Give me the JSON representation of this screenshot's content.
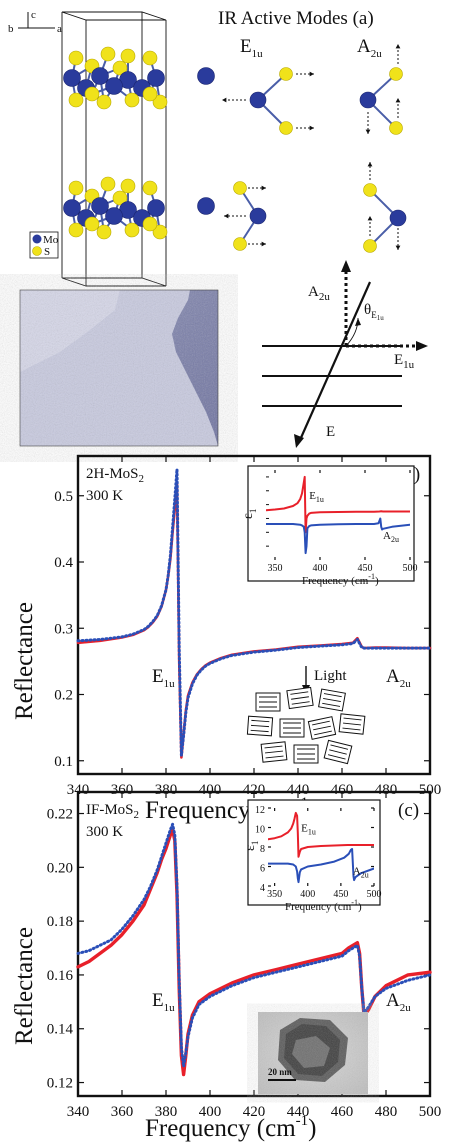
{
  "panel_a": {
    "title": "IR Active Modes (a)",
    "mode_left": "E",
    "mode_left_sub": "1u",
    "mode_right": "A",
    "mode_right_sub": "2u",
    "axis_b": "b",
    "axis_c": "c",
    "axis_a": "a",
    "legend_mo": "Mo",
    "legend_s": "S",
    "geom_a2u": "A",
    "geom_a2u_sub": "2u",
    "geom_e1u": "E",
    "geom_e1u_sub": "1u",
    "geom_e": "E",
    "geom_theta": "θ",
    "geom_theta_sub": "E",
    "geom_theta_subsub": "1u",
    "atom_colors": {
      "mo": "#2a3b9c",
      "s": "#f0e21a"
    }
  },
  "chart_data": [
    {
      "type": "line",
      "panel_label": "(b)",
      "annotation_sample": "2H-MoS",
      "annotation_sample_sub": "2",
      "annotation_temp": "300 K",
      "ylabel": "Reflectance",
      "xlabel": "Frequency (cm",
      "xlabel_sup": "-1",
      "xlabel_end": ")",
      "xlim": [
        340,
        500
      ],
      "ylim": [
        0.08,
        0.56
      ],
      "xticks": [
        "340",
        "360",
        "380",
        "400",
        "420",
        "440",
        "460",
        "480",
        "500"
      ],
      "yticks": [
        "0.1",
        "0.2",
        "0.3",
        "0.4",
        "0.5"
      ],
      "peak_labels": {
        "e": "E",
        "e_sub": "1u",
        "a": "A",
        "a_sub": "2u"
      },
      "light_label": "Light",
      "series": [
        {
          "style": "solid-red",
          "color": "#e8202a",
          "x": [
            340,
            350,
            360,
            365,
            370,
            372,
            374,
            376,
            378,
            380,
            381,
            382,
            383,
            384,
            385,
            386,
            387,
            388,
            389,
            390,
            392,
            394,
            396,
            398,
            400,
            405,
            410,
            420,
            430,
            440,
            450,
            460,
            465,
            467,
            469,
            470,
            475,
            480,
            490,
            500
          ],
          "y": [
            0.278,
            0.281,
            0.286,
            0.29,
            0.297,
            0.302,
            0.309,
            0.318,
            0.333,
            0.358,
            0.379,
            0.405,
            0.445,
            0.48,
            0.52,
            0.25,
            0.105,
            0.14,
            0.175,
            0.198,
            0.218,
            0.23,
            0.238,
            0.244,
            0.248,
            0.255,
            0.26,
            0.265,
            0.268,
            0.272,
            0.274,
            0.276,
            0.278,
            0.285,
            0.272,
            0.27,
            0.271,
            0.271,
            0.27,
            0.27
          ]
        },
        {
          "style": "dotted-blue",
          "color": "#2a4fb8",
          "x": [
            340,
            350,
            360,
            365,
            370,
            372,
            374,
            376,
            378,
            380,
            381,
            382,
            383,
            384,
            385,
            386,
            387,
            388,
            389,
            390,
            392,
            394,
            396,
            398,
            400,
            405,
            410,
            420,
            430,
            440,
            450,
            460,
            465,
            467,
            469,
            470,
            475,
            480,
            490,
            500
          ],
          "y": [
            0.281,
            0.283,
            0.287,
            0.291,
            0.298,
            0.303,
            0.31,
            0.319,
            0.334,
            0.358,
            0.38,
            0.41,
            0.452,
            0.495,
            0.54,
            0.27,
            0.108,
            0.138,
            0.172,
            0.195,
            0.216,
            0.229,
            0.237,
            0.243,
            0.247,
            0.254,
            0.259,
            0.264,
            0.267,
            0.271,
            0.273,
            0.275,
            0.277,
            0.283,
            0.271,
            0.27,
            0.27,
            0.27,
            0.27,
            0.27
          ]
        }
      ],
      "inset": {
        "ylabel": "ε",
        "ylabel_sub": "1",
        "xlabel": "Frequency (cm",
        "xlabel_sup": "-1",
        "xlabel_end": ")",
        "xlim": [
          340,
          500
        ],
        "ylim": [
          -20,
          45
        ],
        "xticks": [
          "350",
          "400",
          "450",
          "500"
        ],
        "label_e": "E",
        "label_e_sub": "1u",
        "label_a": "A",
        "label_a_sub": "2u",
        "series": [
          {
            "color": "#e8202a",
            "x": [
              340,
              350,
              360,
              370,
              375,
              378,
              380,
              382,
              383,
              384,
              385,
              386,
              388,
              390,
              400,
              420,
              440,
              460,
              466,
              468,
              470,
              480,
              500
            ],
            "y": [
              16,
              16.5,
              17.2,
              19,
              21,
              24,
              28,
              36,
              40,
              0,
              10,
              12,
              13.5,
              14,
              14.5,
              14.7,
              14.8,
              14.9,
              15.0,
              15.2,
              15,
              15,
              15
            ]
          },
          {
            "color": "#2a4fb8",
            "x": [
              340,
              360,
              370,
              378,
              380,
              382,
              383,
              384,
              385,
              386,
              388,
              390,
              400,
              420,
              440,
              460,
              465,
              467,
              468,
              469,
              470,
              480,
              500
            ],
            "y": [
              6,
              6,
              6,
              5.5,
              5,
              4,
              0,
              -15,
              -10,
              3,
              4.5,
              5,
              5.5,
              5.8,
              6,
              6,
              6.5,
              10,
              4,
              2,
              2.5,
              4,
              5.5
            ]
          }
        ]
      }
    },
    {
      "type": "line",
      "panel_label": "(c)",
      "annotation_sample": "IF-MoS",
      "annotation_sample_sub": "2",
      "annotation_temp": "300 K",
      "ylabel": "Reflectance",
      "xlabel": "Frequency (cm",
      "xlabel_sup": "-1",
      "xlabel_end": ")",
      "xlim": [
        340,
        500
      ],
      "ylim": [
        0.115,
        0.228
      ],
      "xticks": [
        "340",
        "360",
        "380",
        "400",
        "420",
        "440",
        "460",
        "480",
        "500"
      ],
      "yticks": [
        "0.12",
        "0.14",
        "0.16",
        "0.18",
        "0.20",
        "0.22"
      ],
      "peak_labels": {
        "e": "E",
        "e_sub": "1u",
        "a": "A",
        "a_sub": "2u"
      },
      "scale_bar": "20 nm",
      "series": [
        {
          "style": "solid-red",
          "color": "#e8202a",
          "x": [
            340,
            345,
            350,
            355,
            360,
            365,
            370,
            373,
            376,
            378,
            380,
            382,
            383,
            384,
            385,
            386,
            387,
            388,
            389,
            390,
            392,
            395,
            400,
            410,
            420,
            430,
            440,
            450,
            460,
            463,
            465,
            467,
            468,
            469,
            470,
            472,
            475,
            480,
            490,
            500
          ],
          "y": [
            0.163,
            0.165,
            0.168,
            0.171,
            0.175,
            0.18,
            0.186,
            0.192,
            0.198,
            0.203,
            0.207,
            0.212,
            0.214,
            0.21,
            0.19,
            0.155,
            0.13,
            0.123,
            0.13,
            0.138,
            0.145,
            0.15,
            0.153,
            0.157,
            0.16,
            0.162,
            0.164,
            0.166,
            0.168,
            0.17,
            0.171,
            0.172,
            0.168,
            0.155,
            0.145,
            0.147,
            0.152,
            0.156,
            0.16,
            0.161
          ]
        },
        {
          "style": "dotted-blue",
          "color": "#2a4fb8",
          "x": [
            340,
            345,
            350,
            355,
            360,
            365,
            370,
            373,
            376,
            378,
            380,
            382,
            383,
            384,
            385,
            386,
            387,
            388,
            389,
            390,
            392,
            395,
            400,
            410,
            420,
            430,
            440,
            450,
            460,
            463,
            465,
            467,
            468,
            469,
            470,
            472,
            475,
            480,
            490,
            500
          ],
          "y": [
            0.168,
            0.169,
            0.171,
            0.173,
            0.177,
            0.182,
            0.188,
            0.193,
            0.199,
            0.204,
            0.209,
            0.214,
            0.216,
            0.212,
            0.193,
            0.158,
            0.133,
            0.126,
            0.131,
            0.137,
            0.144,
            0.149,
            0.152,
            0.156,
            0.159,
            0.161,
            0.163,
            0.165,
            0.167,
            0.169,
            0.17,
            0.171,
            0.167,
            0.155,
            0.146,
            0.148,
            0.152,
            0.155,
            0.158,
            0.16
          ]
        }
      ],
      "inset": {
        "ylabel": "ε",
        "ylabel_sub": "1",
        "xlabel": "Frequency (cm",
        "xlabel_sup": "-1",
        "xlabel_end": ")",
        "xlim": [
          340,
          500
        ],
        "ylim": [
          4,
          12
        ],
        "xticks": [
          "350",
          "400",
          "450",
          "500"
        ],
        "yticks": [
          "4",
          "6",
          "8",
          "10",
          "12"
        ],
        "label_e": "E",
        "label_e_sub": "1u",
        "label_a": "A",
        "label_a_sub": "2u",
        "series": [
          {
            "color": "#e8202a",
            "x": [
              340,
              350,
              360,
              370,
              375,
              378,
              380,
              382,
              384,
              385,
              386,
              388,
              390,
              400,
              420,
              440,
              460,
              480,
              500
            ],
            "y": [
              8.8,
              8.9,
              9.1,
              9.5,
              9.9,
              10.4,
              10.9,
              11.5,
              11.2,
              9.5,
              7,
              7.5,
              7.8,
              8.0,
              8.1,
              8.15,
              8.2,
              8.2,
              8.2
            ]
          },
          {
            "color": "#2a4fb8",
            "x": [
              340,
              360,
              370,
              378,
              382,
              384,
              385,
              386,
              388,
              390,
              400,
              420,
              440,
              455,
              462,
              465,
              467,
              469,
              470,
              472,
              480,
              500
            ],
            "y": [
              6.3,
              6.3,
              6.3,
              6.2,
              6.0,
              5.5,
              4.8,
              4.4,
              5.4,
              5.7,
              6.0,
              6.2,
              6.5,
              6.9,
              7.3,
              7.7,
              7.8,
              5.0,
              4.6,
              4.9,
              5.3,
              5.8
            ]
          }
        ]
      }
    }
  ]
}
